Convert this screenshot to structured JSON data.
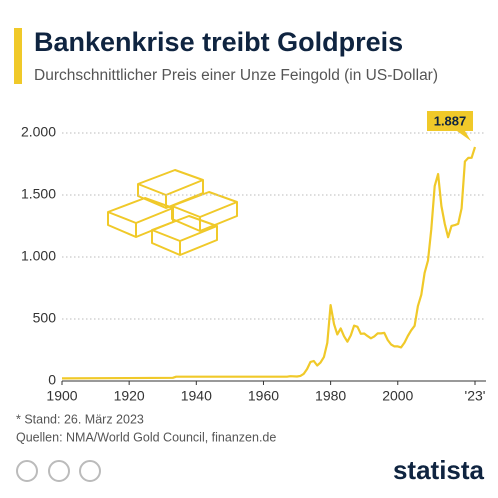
{
  "chart_data": {
    "type": "line",
    "title": "Bankenkrise treibt Goldpreis",
    "subtitle": "Durchschnittlicher Preis einer Unze Feingold (in US-Dollar)",
    "x": [
      1900,
      1933,
      1934,
      1967,
      1968,
      1970,
      1971,
      1972,
      1973,
      1974,
      1975,
      1976,
      1977,
      1978,
      1979,
      1980,
      1981,
      1982,
      1983,
      1984,
      1985,
      1986,
      1987,
      1988,
      1989,
      1990,
      1991,
      1992,
      1993,
      1994,
      1995,
      1996,
      1997,
      1998,
      1999,
      2000,
      2001,
      2002,
      2003,
      2004,
      2005,
      2006,
      2007,
      2008,
      2009,
      2010,
      2011,
      2012,
      2013,
      2014,
      2015,
      2016,
      2017,
      2018,
      2019,
      2020,
      2021,
      2022,
      2023
    ],
    "values": [
      20.67,
      26,
      35,
      35,
      39,
      36,
      41,
      58,
      97,
      154,
      161,
      125,
      148,
      193,
      307,
      612,
      460,
      376,
      424,
      361,
      317,
      368,
      447,
      437,
      381,
      383,
      362,
      344,
      360,
      384,
      384,
      388,
      331,
      294,
      279,
      279,
      271,
      310,
      363,
      409,
      445,
      604,
      695,
      872,
      972,
      1225,
      1572,
      1669,
      1411,
      1266,
      1160,
      1251,
      1257,
      1268,
      1393,
      1770,
      1799,
      1800,
      1887
    ],
    "color": "#f0c929",
    "annotation": "1.887",
    "xlim": [
      1900,
      2023
    ],
    "xticks": [
      1900,
      1920,
      1940,
      1960,
      1980,
      2000,
      {
        "value": 2023,
        "label": "'23'"
      }
    ],
    "ylim": [
      0,
      2000
    ],
    "yticks": [
      0,
      500,
      {
        "value": 1000,
        "label": "1.000"
      },
      {
        "value": 1500,
        "label": "1.500"
      },
      {
        "value": 2000,
        "label": "2.000"
      }
    ],
    "grid": true,
    "footnote": "* Stand: 26. März 2023",
    "source": "Quellen: NMA/World Gold Council, finanzen.de",
    "brand": "statista"
  }
}
